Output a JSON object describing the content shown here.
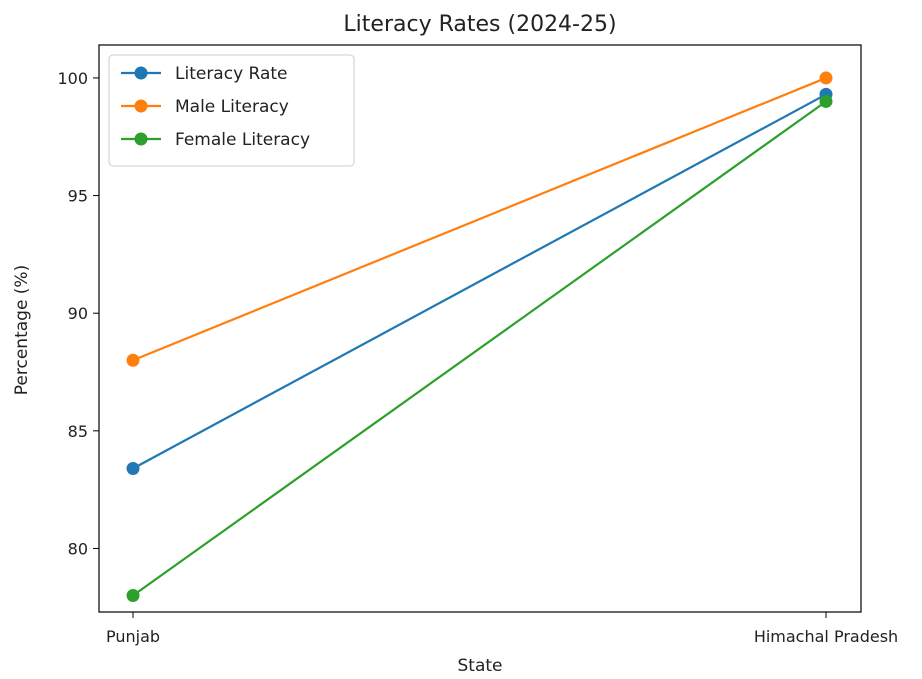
{
  "chart_data": {
    "type": "line",
    "title": "Literacy Rates (2024-25)",
    "xlabel": "State",
    "ylabel": "Percentage (%)",
    "categories": [
      "Punjab",
      "Himachal Pradesh"
    ],
    "ylim": [
      77.3,
      101.4
    ],
    "yticks": [
      80,
      85,
      90,
      95,
      100
    ],
    "grid": false,
    "legend_position": "upper-left",
    "series": [
      {
        "name": "Literacy Rate",
        "color": "#1f77b4",
        "values": [
          83.4,
          99.3
        ]
      },
      {
        "name": "Male Literacy",
        "color": "#ff7f0e",
        "values": [
          88.0,
          100.0
        ]
      },
      {
        "name": "Female Literacy",
        "color": "#2ca02c",
        "values": [
          78.0,
          99.0
        ]
      }
    ]
  }
}
